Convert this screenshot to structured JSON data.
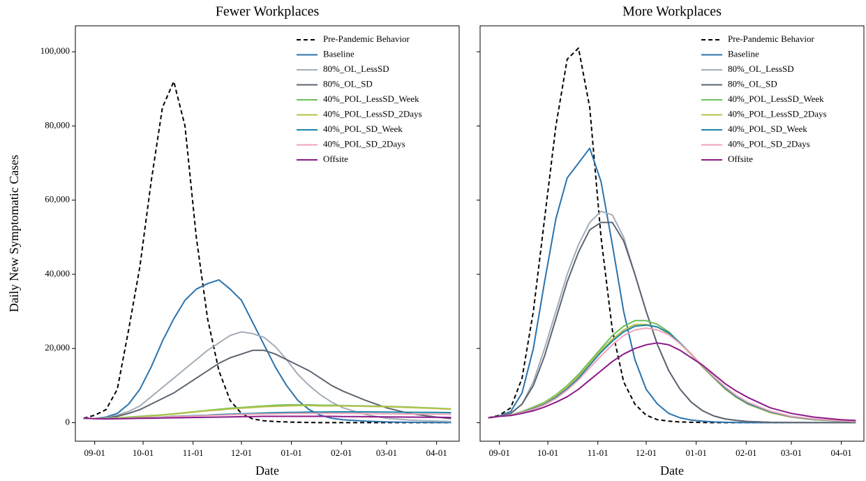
{
  "chart_data": [
    {
      "type": "line",
      "title": "Fewer Workplaces",
      "x_label": "Date",
      "y_label": "Daily New Symptomatic Cases",
      "x": [
        "08-25",
        "09-01",
        "09-08",
        "09-15",
        "09-22",
        "09-29",
        "10-06",
        "10-13",
        "10-20",
        "10-27",
        "11-03",
        "11-10",
        "11-17",
        "11-24",
        "12-01",
        "12-08",
        "12-15",
        "12-22",
        "12-29",
        "01-05",
        "01-12",
        "01-19",
        "01-26",
        "02-02",
        "02-16",
        "03-01",
        "03-15",
        "04-01",
        "04-10"
      ],
      "xlim": [
        "08-20",
        "04-15"
      ],
      "xticks": [
        "09-01",
        "10-01",
        "11-01",
        "12-01",
        "01-01",
        "02-01",
        "03-01",
        "04-01"
      ],
      "ylim": [
        -5000,
        107000
      ],
      "yticks": [
        0,
        {
          "value": 20000,
          "label": "20,000"
        },
        {
          "value": 40000,
          "label": "40,000"
        },
        {
          "value": 60000,
          "label": "60,000"
        },
        {
          "value": 80000,
          "label": "80,000"
        },
        {
          "value": 100000,
          "label": "100,000"
        }
      ],
      "ytick_labels": true,
      "legend": "upper right",
      "series": [
        {
          "name": "Pre-Pandemic Behavior",
          "color": "#000000",
          "dash": true,
          "values": [
            1200,
            2000,
            3500,
            9000,
            25000,
            42000,
            65000,
            85000,
            92000,
            80000,
            50000,
            28000,
            14000,
            6000,
            2500,
            1000,
            500,
            300,
            200,
            100,
            50,
            0,
            0,
            0,
            0,
            0,
            0,
            0,
            0
          ]
        },
        {
          "name": "Baseline",
          "color": "#2a73ad",
          "values": [
            1200,
            1100,
            1500,
            2500,
            5000,
            9000,
            15000,
            22000,
            28000,
            33000,
            36000,
            37500,
            38500,
            36000,
            33000,
            27000,
            21000,
            15000,
            10000,
            6000,
            3500,
            2000,
            1200,
            800,
            400,
            200,
            100,
            50,
            50
          ]
        },
        {
          "name": "80%_OL_LessSD",
          "color": "#a3acb8",
          "values": [
            1200,
            1100,
            1300,
            2000,
            3000,
            4500,
            7000,
            9500,
            12000,
            14500,
            17000,
            19500,
            21500,
            23500,
            24500,
            24000,
            23000,
            20500,
            17000,
            13000,
            10000,
            7500,
            5500,
            4000,
            2200,
            1200,
            700,
            400,
            300
          ]
        },
        {
          "name": "80%_OL_SD",
          "color": "#5d6470",
          "values": [
            1200,
            1100,
            1200,
            1700,
            2500,
            3500,
            5000,
            6500,
            8000,
            10000,
            12000,
            14000,
            16000,
            17500,
            18500,
            19500,
            19500,
            18500,
            17000,
            15500,
            14000,
            12000,
            10000,
            8500,
            6000,
            4000,
            2500,
            1500,
            1100
          ]
        },
        {
          "name": "40%_POL_LessSD_Week",
          "color": "#6cbf5a",
          "values": [
            1200,
            1100,
            1150,
            1300,
            1500,
            1700,
            1900,
            2100,
            2400,
            2700,
            3000,
            3300,
            3600,
            3900,
            4100,
            4300,
            4500,
            4700,
            4800,
            4800,
            4800,
            4700,
            4700,
            4600,
            4500,
            4400,
            4200,
            3900,
            3700
          ]
        },
        {
          "name": "40%_POL_LessSD_2Days",
          "color": "#b9c14b",
          "values": [
            1200,
            1100,
            1100,
            1250,
            1400,
            1600,
            1800,
            2000,
            2300,
            2600,
            2900,
            3200,
            3400,
            3700,
            3900,
            4100,
            4300,
            4400,
            4500,
            4600,
            4600,
            4500,
            4500,
            4500,
            4400,
            4300,
            4100,
            3800,
            3600
          ]
        },
        {
          "name": "40%_POL_SD_Week",
          "color": "#1b85a8",
          "values": [
            1200,
            1100,
            1050,
            1100,
            1200,
            1300,
            1400,
            1500,
            1700,
            1800,
            1900,
            2000,
            2200,
            2300,
            2400,
            2500,
            2600,
            2700,
            2750,
            2800,
            2850,
            2850,
            2900,
            2900,
            2900,
            2850,
            2800,
            2750,
            2700
          ]
        },
        {
          "name": "40%_POL_SD_2Days",
          "color": "#f0a3b9",
          "values": [
            1200,
            1100,
            1050,
            1100,
            1150,
            1250,
            1350,
            1450,
            1600,
            1700,
            1800,
            1900,
            2000,
            2100,
            2200,
            2300,
            2350,
            2400,
            2450,
            2500,
            2500,
            2500,
            2500,
            2500,
            2450,
            2400,
            2350,
            2300,
            2250
          ]
        },
        {
          "name": "Offsite",
          "color": "#8a1a88",
          "values": [
            1200,
            1100,
            1000,
            1050,
            1100,
            1150,
            1200,
            1250,
            1300,
            1350,
            1400,
            1450,
            1500,
            1550,
            1600,
            1650,
            1700,
            1700,
            1700,
            1700,
            1700,
            1700,
            1700,
            1650,
            1600,
            1550,
            1500,
            1450,
            1400
          ]
        }
      ]
    },
    {
      "type": "line",
      "title": "More Workplaces",
      "x_label": "Date",
      "x": [
        "08-25",
        "09-01",
        "09-08",
        "09-15",
        "09-22",
        "09-29",
        "10-06",
        "10-13",
        "10-20",
        "10-27",
        "11-03",
        "11-10",
        "11-17",
        "11-24",
        "12-01",
        "12-08",
        "12-15",
        "12-22",
        "12-29",
        "01-05",
        "01-12",
        "01-19",
        "01-26",
        "02-02",
        "02-16",
        "03-01",
        "03-15",
        "04-01",
        "04-10"
      ],
      "xlim": [
        "08-20",
        "04-15"
      ],
      "xticks": [
        "09-01",
        "10-01",
        "11-01",
        "12-01",
        "01-01",
        "02-01",
        "03-01",
        "04-01"
      ],
      "ylim": [
        -5000,
        107000
      ],
      "yticks": [
        0,
        20000,
        40000,
        60000,
        80000,
        100000
      ],
      "ytick_labels": false,
      "legend": "upper right",
      "series": [
        {
          "name": "Pre-Pandemic Behavior",
          "color": "#000000",
          "dash": true,
          "values": [
            1300,
            2000,
            4000,
            12000,
            30000,
            55000,
            80000,
            98000,
            101000,
            85000,
            50000,
            25000,
            11000,
            5000,
            2000,
            800,
            400,
            200,
            100,
            50,
            0,
            0,
            0,
            0,
            0,
            0,
            0,
            0,
            0
          ]
        },
        {
          "name": "Baseline",
          "color": "#2a73ad",
          "values": [
            1300,
            1800,
            3000,
            8000,
            20000,
            38000,
            55000,
            66000,
            70000,
            74000,
            65000,
            48000,
            30000,
            17000,
            9000,
            5000,
            2500,
            1300,
            700,
            400,
            200,
            100,
            50,
            0,
            0,
            0,
            0,
            0,
            0
          ]
        },
        {
          "name": "80%_OL_LessSD",
          "color": "#a3acb8",
          "values": [
            1300,
            1700,
            2500,
            5000,
            11000,
            20000,
            30000,
            40000,
            48000,
            54000,
            57000,
            56000,
            50000,
            40000,
            30000,
            21000,
            14000,
            9000,
            5500,
            3200,
            1800,
            1000,
            600,
            300,
            100,
            50,
            0,
            0,
            0
          ]
        },
        {
          "name": "80%_OL_SD",
          "color": "#5d6470",
          "values": [
            1300,
            1700,
            2500,
            5000,
            10000,
            18000,
            28000,
            38000,
            46000,
            52000,
            54000,
            54000,
            49000,
            40000,
            30000,
            21000,
            14000,
            9000,
            5500,
            3200,
            1800,
            1000,
            600,
            300,
            100,
            50,
            0,
            0,
            0
          ]
        },
        {
          "name": "40%_POL_LessSD_Week",
          "color": "#6cbf5a",
          "values": [
            1300,
            1700,
            2100,
            3000,
            4200,
            5500,
            7500,
            10000,
            13000,
            16500,
            20000,
            23500,
            26000,
            27500,
            27500,
            26500,
            24500,
            21500,
            18500,
            15000,
            12000,
            9000,
            6800,
            5000,
            2700,
            1500,
            800,
            400,
            300
          ]
        },
        {
          "name": "40%_POL_LessSD_2Days",
          "color": "#b9c14b",
          "values": [
            1300,
            1700,
            2100,
            2900,
            4000,
            5300,
            7200,
            9700,
            12500,
            16000,
            19500,
            22500,
            25000,
            26500,
            26500,
            25800,
            24000,
            21300,
            18300,
            15000,
            12000,
            9000,
            6800,
            5000,
            2700,
            1500,
            800,
            400,
            300
          ]
        },
        {
          "name": "40%_POL_SD_Week",
          "color": "#1b85a8",
          "values": [
            1300,
            1700,
            2000,
            2800,
            3800,
            5000,
            6800,
            9200,
            12000,
            15500,
            19000,
            22000,
            24500,
            26000,
            26300,
            25800,
            24200,
            21500,
            18500,
            15200,
            12200,
            9300,
            7000,
            5200,
            2900,
            1600,
            900,
            450,
            300
          ]
        },
        {
          "name": "40%_POL_SD_2Days",
          "color": "#f0a3b9",
          "values": [
            1300,
            1700,
            2000,
            2700,
            3600,
            4800,
            6500,
            8800,
            11500,
            14800,
            18000,
            21000,
            23500,
            25000,
            25500,
            25000,
            23700,
            21300,
            18500,
            15300,
            12400,
            9600,
            7300,
            5500,
            3100,
            1700,
            1000,
            500,
            350
          ]
        },
        {
          "name": "Offsite",
          "color": "#8a1a88",
          "values": [
            1300,
            1700,
            1900,
            2500,
            3200,
            4200,
            5500,
            7000,
            9000,
            11500,
            14000,
            16500,
            18500,
            20000,
            21000,
            21500,
            21000,
            19500,
            17500,
            15500,
            13000,
            10500,
            8500,
            6800,
            4000,
            2500,
            1500,
            800,
            600
          ]
        }
      ]
    }
  ]
}
